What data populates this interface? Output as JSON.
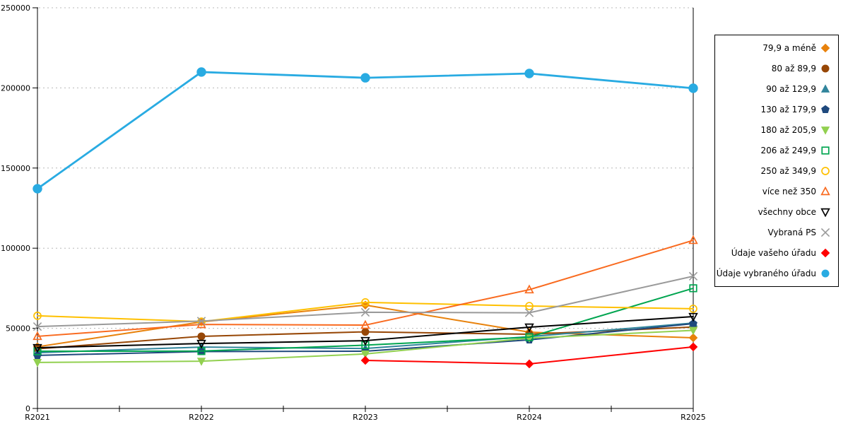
{
  "chart_data": {
    "type": "line",
    "title": "",
    "xlabel": "",
    "ylabel": "",
    "categories": [
      "R2021",
      "R2022",
      "R2023",
      "R2024",
      "R2025"
    ],
    "ylim": [
      0,
      250000
    ],
    "ytick_step": 50000,
    "ytick_labels": [
      "0",
      "50000",
      "100000",
      "150000",
      "200000",
      "250000"
    ],
    "grid": "horizontal-dashed",
    "legend_position": "right",
    "series": [
      {
        "name": "79,9 a méně",
        "color": "#E8820C",
        "marker": "diamond",
        "fill": "solid",
        "values": [
          38500,
          54000,
          64500,
          47600,
          44100
        ]
      },
      {
        "name": "80 až 89,9",
        "color": "#974706",
        "marker": "circle",
        "fill": "solid",
        "values": [
          37200,
          45000,
          47800,
          46300,
          50800
        ]
      },
      {
        "name": "90 až 129,9",
        "color": "#31859C",
        "marker": "triangle",
        "fill": "solid",
        "values": [
          34800,
          38300,
          37400,
          44800,
          53300
        ]
      },
      {
        "name": "130 až 179,9",
        "color": "#1F497D",
        "marker": "pentagon",
        "fill": "solid",
        "values": [
          33100,
          35500,
          35700,
          42800,
          52900
        ]
      },
      {
        "name": "180 až 205,9",
        "color": "#92D050",
        "marker": "triangle-down",
        "fill": "solid",
        "values": [
          28700,
          29500,
          34000,
          43900,
          48700
        ]
      },
      {
        "name": "206 až 249,9",
        "color": "#00A550",
        "marker": "square",
        "fill": "open",
        "values": [
          35700,
          35800,
          39500,
          44500,
          75000
        ]
      },
      {
        "name": "250 až 349,9",
        "color": "#FFC000",
        "marker": "circle",
        "fill": "open",
        "values": [
          57800,
          54200,
          66200,
          63900,
          62200
        ]
      },
      {
        "name": "více než 350",
        "color": "#F96A1F",
        "marker": "triangle",
        "fill": "open",
        "values": [
          45000,
          52400,
          52000,
          74100,
          104900
        ]
      },
      {
        "name": "všechny obce",
        "color": "#000000",
        "marker": "triangle-down",
        "fill": "open",
        "values": [
          37900,
          40500,
          42300,
          50700,
          57300
        ]
      },
      {
        "name": "Vybraná PS",
        "color": "#9A9A9A",
        "marker": "x",
        "fill": "open",
        "values": [
          51100,
          54500,
          60000,
          59700,
          82500
        ]
      },
      {
        "name": "Údaje vašeho úřadu",
        "color": "#FF0000",
        "marker": "diamond",
        "fill": "solid",
        "values": [
          null,
          null,
          30000,
          27800,
          38400
        ]
      },
      {
        "name": "Údaje vybraného úřadu",
        "color": "#29ABE2",
        "marker": "circle",
        "fill": "solid",
        "values": [
          137100,
          209900,
          206300,
          209000,
          199800
        ]
      }
    ]
  }
}
